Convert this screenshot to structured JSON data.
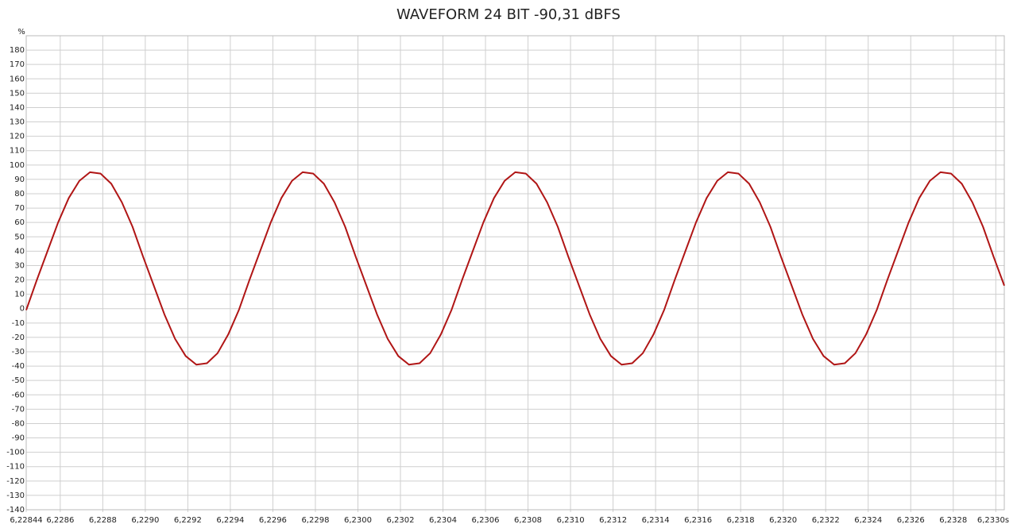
{
  "chart_data": {
    "type": "line",
    "title": "WAVEFORM 24 BIT -90,31 dBFS",
    "y_label": "%",
    "x": [
      6.22844,
      6.22849,
      6.22854,
      6.22859,
      6.22864,
      6.22869,
      6.22874,
      6.22879,
      6.22884,
      6.22889,
      6.22894,
      6.22899,
      6.22904,
      6.22909,
      6.22914,
      6.22919,
      6.22924,
      6.22929,
      6.22934,
      6.22939,
      6.22944,
      6.22949,
      6.22954,
      6.22959,
      6.22964,
      6.22969,
      6.22974,
      6.22979,
      6.22984,
      6.22989,
      6.22994,
      6.22999,
      6.23004,
      6.23009,
      6.23014,
      6.23019,
      6.23024,
      6.23029,
      6.23034,
      6.23039,
      6.23044,
      6.23049,
      6.23054,
      6.23059,
      6.23064,
      6.23069,
      6.23074,
      6.23079,
      6.23084,
      6.23089,
      6.23094,
      6.23099,
      6.23104,
      6.23109,
      6.23114,
      6.23119,
      6.23124,
      6.23129,
      6.23134,
      6.23139,
      6.23144,
      6.23149,
      6.23154,
      6.23159,
      6.23164,
      6.23169,
      6.23174,
      6.23179,
      6.23184,
      6.23189,
      6.23194,
      6.23199,
      6.23204,
      6.23209,
      6.23214,
      6.23219,
      6.23224,
      6.23229,
      6.23234,
      6.23239,
      6.23244,
      6.23249,
      6.23254,
      6.23259,
      6.23264,
      6.23269,
      6.23274,
      6.23279,
      6.23284,
      6.23289,
      6.23294,
      6.23299,
      6.23304
    ],
    "series": [
      {
        "color": "#b01515",
        "values": [
          -1,
          20,
          40,
          60,
          77,
          89,
          95,
          94,
          87,
          74,
          57,
          36,
          16,
          -4,
          -21,
          -33,
          -39,
          -38,
          -31,
          -18,
          -1,
          20,
          40,
          60,
          77,
          89,
          95,
          94,
          87,
          74,
          57,
          36,
          16,
          -4,
          -21,
          -33,
          -39,
          -38,
          -31,
          -18,
          -1,
          20,
          40,
          60,
          77,
          89,
          95,
          94,
          87,
          74,
          57,
          36,
          16,
          -4,
          -21,
          -33,
          -39,
          -38,
          -31,
          -18,
          -1,
          20,
          40,
          60,
          77,
          89,
          95,
          94,
          87,
          74,
          57,
          36,
          16,
          -4,
          -21,
          -33,
          -39,
          -38,
          -31,
          -18,
          -1,
          20,
          40,
          60,
          77,
          89,
          95,
          94,
          87,
          74,
          57,
          36,
          16
        ]
      }
    ],
    "xlim": [
      6.22844,
      6.23304
    ],
    "xticks": [
      {
        "value": 6.22844,
        "label": "6,22844"
      },
      {
        "value": 6.2286,
        "label": "6,2286"
      },
      {
        "value": 6.2288,
        "label": "6,2288"
      },
      {
        "value": 6.229,
        "label": "6,2290"
      },
      {
        "value": 6.2292,
        "label": "6,2292"
      },
      {
        "value": 6.2294,
        "label": "6,2294"
      },
      {
        "value": 6.2296,
        "label": "6,2296"
      },
      {
        "value": 6.2298,
        "label": "6,2298"
      },
      {
        "value": 6.23,
        "label": "6,2300"
      },
      {
        "value": 6.2302,
        "label": "6,2302"
      },
      {
        "value": 6.2304,
        "label": "6,2304"
      },
      {
        "value": 6.2306,
        "label": "6,2306"
      },
      {
        "value": 6.2308,
        "label": "6,2308"
      },
      {
        "value": 6.231,
        "label": "6,2310"
      },
      {
        "value": 6.2312,
        "label": "6,2312"
      },
      {
        "value": 6.2314,
        "label": "6,2314"
      },
      {
        "value": 6.2316,
        "label": "6,2316"
      },
      {
        "value": 6.2318,
        "label": "6,2318"
      },
      {
        "value": 6.232,
        "label": "6,2320"
      },
      {
        "value": 6.2322,
        "label": "6,2322"
      },
      {
        "value": 6.2324,
        "label": "6,2324"
      },
      {
        "value": 6.2326,
        "label": "6,2326"
      },
      {
        "value": 6.2328,
        "label": "6,2328"
      },
      {
        "value": 6.233,
        "label": "6,2330s"
      }
    ],
    "ylim": [
      -140,
      190
    ],
    "yticks": [
      -140,
      -130,
      -120,
      -110,
      -100,
      -90,
      -80,
      -70,
      -60,
      -50,
      -40,
      -30,
      -20,
      -10,
      0,
      10,
      20,
      30,
      40,
      50,
      60,
      70,
      80,
      90,
      100,
      110,
      120,
      130,
      140,
      150,
      160,
      170,
      180
    ],
    "grid": true
  }
}
